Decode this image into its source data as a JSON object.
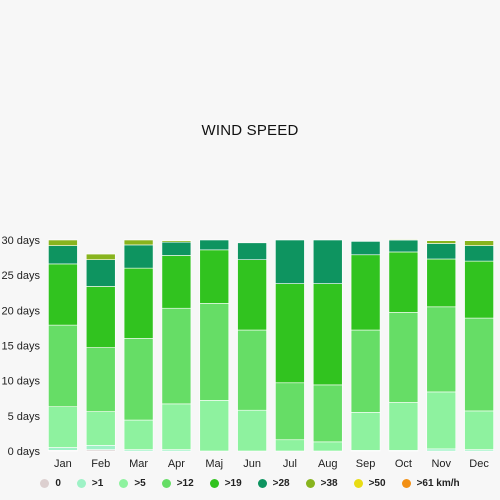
{
  "chart_data": {
    "type": "bar",
    "stacked": true,
    "title": "WIND SPEED",
    "xlabel": "",
    "ylabel": "",
    "ylim": [
      0,
      30
    ],
    "y_ticks": [
      0,
      5,
      10,
      15,
      20,
      25,
      30
    ],
    "y_tick_suffix": " days",
    "grid": false,
    "legend_position": "bottom",
    "categories": [
      "Jan",
      "Feb",
      "Mar",
      "Apr",
      "Maj",
      "Jun",
      "Jul",
      "Aug",
      "Sep",
      "Oct",
      "Nov",
      "Dec"
    ],
    "series": [
      {
        "name": "0",
        "color": "#dccfcf",
        "values": [
          0.1,
          0.2,
          0,
          0,
          0,
          0,
          0,
          0,
          0,
          0,
          0,
          0
        ]
      },
      {
        "name": ">1",
        "color": "#9ef2c6",
        "values": [
          0.4,
          0.6,
          0.2,
          0.2,
          0,
          0,
          0,
          0,
          0.1,
          0.1,
          0.3,
          0.2
        ]
      },
      {
        "name": ">5",
        "color": "#8ef29f",
        "values": [
          5.8,
          4.8,
          4.2,
          6.5,
          7.2,
          5.8,
          1.6,
          1.3,
          5.4,
          6.8,
          8.1,
          5.5
        ]
      },
      {
        "name": ">12",
        "color": "#66dd66",
        "values": [
          11.6,
          9.1,
          11.6,
          13.6,
          13.8,
          11.4,
          8.1,
          8.1,
          11.7,
          12.8,
          12.1,
          13.2
        ]
      },
      {
        "name": ">19",
        "color": "#31c31f",
        "values": [
          8.7,
          8.7,
          10.0,
          7.5,
          7.6,
          10.0,
          14.1,
          14.4,
          10.7,
          8.6,
          6.8,
          8.1
        ]
      },
      {
        "name": ">28",
        "color": "#0e9460",
        "values": [
          2.6,
          3.8,
          3.3,
          1.9,
          1.4,
          2.4,
          6.2,
          6.2,
          1.9,
          1.7,
          2.2,
          2.2
        ]
      },
      {
        "name": ">38",
        "color": "#88b41e",
        "values": [
          0.8,
          0.8,
          0.7,
          0.2,
          0,
          0,
          0,
          0,
          0,
          0.1,
          0.4,
          0.7
        ]
      },
      {
        "name": ">50",
        "color": "#e8dc14",
        "values": [
          0,
          0,
          0,
          0,
          0,
          0,
          0,
          0,
          0,
          0,
          0,
          0
        ]
      },
      {
        "name": ">61 km/h",
        "color": "#f29014",
        "values": [
          0,
          0,
          0,
          0,
          0,
          0,
          0,
          0,
          0,
          0,
          0,
          0
        ]
      }
    ]
  }
}
